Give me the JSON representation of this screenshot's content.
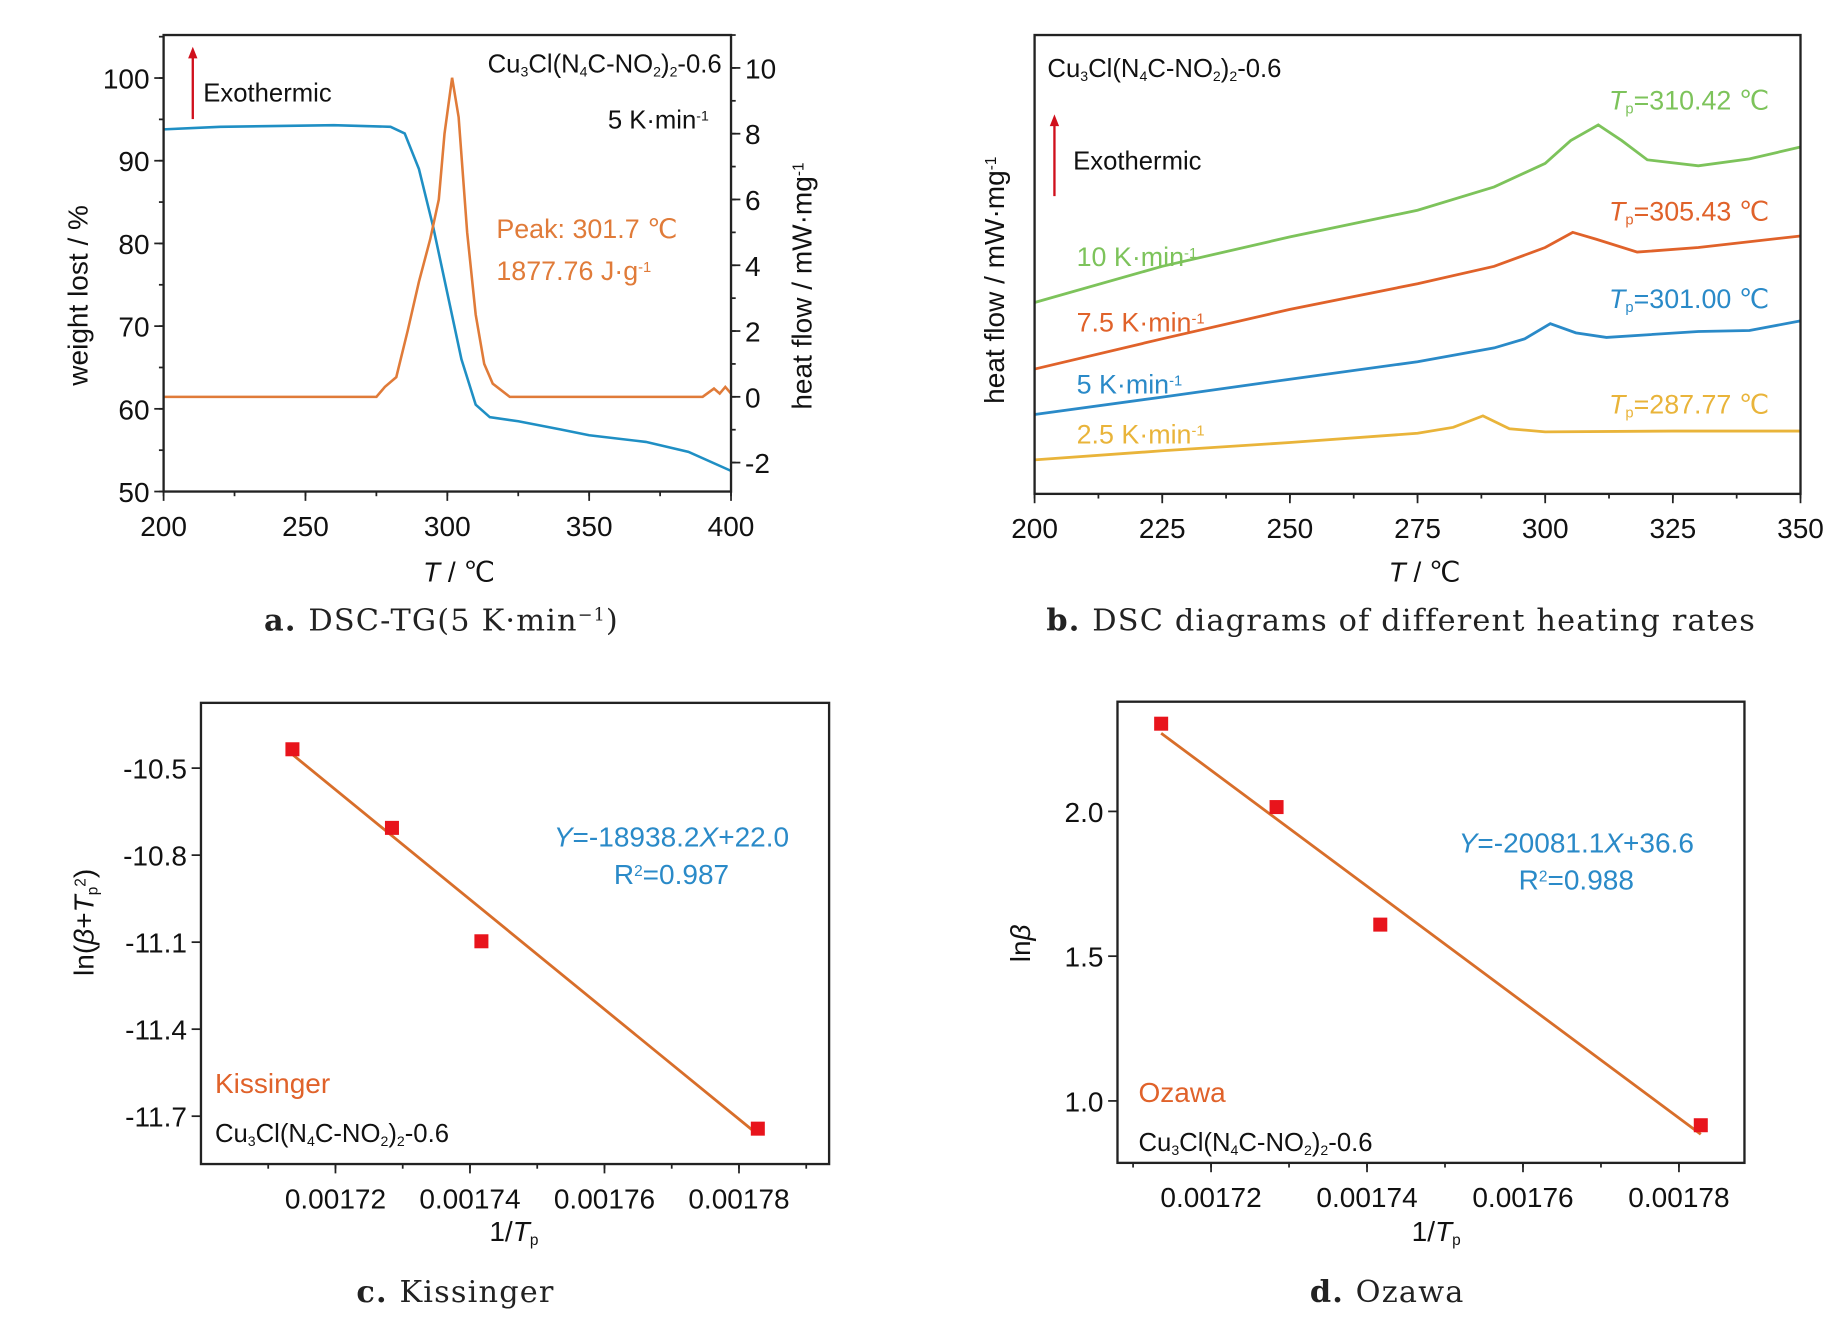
{
  "colors": {
    "tg": "#1f8fc4",
    "dsc": "#e07b39",
    "arrow": "#d0101c",
    "rate_10": "#7dc35b",
    "rate_7_5": "#e0622a",
    "rate_5": "#2a8ac8",
    "rate_2_5": "#e9b43a",
    "equation": "#2a8ac8",
    "points": "#e8141c",
    "fit": "#d86e2a",
    "method": "#e0622a"
  },
  "chart_data": [
    {
      "id": "a",
      "type": "line",
      "caption": {
        "letter": "a.",
        "text": [
          "DSC-TG(5 K·min",
          [
            "−1",
            "sup"
          ],
          ")"
        ]
      },
      "xlabel": [
        [
          "T",
          "it"
        ],
        " / ℃"
      ],
      "ylabel": "weight lost / %",
      "y2label": [
        "heat flow / mW·mg",
        [
          "-1",
          "sup"
        ]
      ],
      "xlim": [
        200,
        400
      ],
      "ylim": [
        50,
        105.2
      ],
      "y2lim": [
        -2.88,
        11
      ],
      "xticks": [
        200,
        250,
        300,
        350,
        400
      ],
      "yticks": [
        50,
        60,
        70,
        80,
        90,
        100
      ],
      "y2ticks": [
        -2,
        0,
        2,
        4,
        6,
        8,
        10
      ],
      "annotations": {
        "compound": [
          "Cu",
          [
            "3",
            "sub"
          ],
          "Cl(N",
          [
            "4",
            "sub"
          ],
          "C-NO",
          [
            "2",
            "sub"
          ],
          ")",
          [
            "2",
            "sub"
          ],
          "-0.6"
        ],
        "rate": [
          "5 K·min",
          [
            "-1",
            "sup"
          ]
        ],
        "exothermic": "Exothermic",
        "peak": "Peak: 301.7 ℃",
        "enthalpy": [
          "1877.76 J·g",
          [
            "-1",
            "sup"
          ]
        ]
      },
      "series": [
        {
          "axis": "left",
          "color_key": "tg",
          "x": [
            200,
            220,
            260,
            280,
            285,
            290,
            295,
            300,
            305,
            310,
            315,
            325,
            340,
            350,
            370,
            385,
            400
          ],
          "y": [
            93.8,
            94.1,
            94.3,
            94.1,
            93.3,
            89,
            82,
            74,
            66,
            60.5,
            59,
            58.5,
            57.5,
            56.8,
            56,
            54.8,
            52.5
          ]
        },
        {
          "axis": "right",
          "color_key": "dsc",
          "x": [
            200,
            240,
            275,
            278,
            282,
            286,
            290,
            294,
            297,
            299,
            301.7,
            304,
            307,
            310,
            313,
            316,
            322,
            360,
            390,
            394,
            396,
            398,
            400
          ],
          "y": [
            0,
            0,
            0,
            0.3,
            0.6,
            2,
            3.5,
            4.8,
            6,
            8,
            9.7,
            8.5,
            5,
            2.5,
            1,
            0.4,
            0,
            0,
            0,
            0.25,
            0.1,
            0.3,
            0.1
          ]
        }
      ]
    },
    {
      "id": "b",
      "type": "line",
      "caption": {
        "letter": "b.",
        "text": [
          "DSC diagrams of different heating rates"
        ]
      },
      "xlabel": [
        [
          "T",
          "it"
        ],
        " / ℃"
      ],
      "ylabel": [
        "heat flow / mW·mg",
        [
          "-1",
          "sup"
        ]
      ],
      "xlim": [
        200,
        350
      ],
      "ylim": [
        0,
        100
      ],
      "xticks": [
        200,
        225,
        250,
        275,
        300,
        325,
        350
      ],
      "annotations": {
        "compound": [
          "Cu",
          [
            "3",
            "sub"
          ],
          "Cl(N",
          [
            "4",
            "sub"
          ],
          "C-NO",
          [
            "2",
            "sub"
          ],
          ")",
          [
            "2",
            "sub"
          ],
          "-0.6"
        ],
        "exothermic": "Exothermic"
      },
      "series": [
        {
          "name": [
            "10 K·min",
            [
              "-1",
              "sup"
            ]
          ],
          "peak_label": [
            [
              "T",
              "it"
            ],
            [
              "p",
              "sub"
            ],
            "=310.42 ℃"
          ],
          "color_key": "rate_10",
          "x": [
            200,
            225,
            250,
            275,
            290,
            300,
            305,
            310.4,
            315,
            320,
            330,
            340,
            350
          ],
          "y": [
            41.7,
            49.6,
            56,
            61.8,
            66.9,
            72,
            77,
            80.4,
            77,
            72.8,
            71.5,
            73,
            75.6
          ]
        },
        {
          "name": [
            "7.5 K·min",
            [
              "-1",
              "sup"
            ]
          ],
          "peak_label": [
            [
              "T",
              "it"
            ],
            [
              "p",
              "sub"
            ],
            "=305.43 ℃"
          ],
          "color_key": "rate_7_5",
          "x": [
            200,
            225,
            250,
            275,
            290,
            300,
            305.4,
            310,
            318,
            330,
            350
          ],
          "y": [
            27.2,
            33.8,
            40.2,
            45.8,
            49.6,
            53.7,
            57,
            55.5,
            52.7,
            53.7,
            56.2
          ]
        },
        {
          "name": [
            "5 K·min",
            [
              "-1",
              "sup"
            ]
          ],
          "peak_label": [
            [
              "T",
              "it"
            ],
            [
              "p",
              "sub"
            ],
            "=301.00 ℃"
          ],
          "color_key": "rate_5",
          "x": [
            200,
            225,
            250,
            275,
            290,
            296,
            301,
            306,
            312,
            330,
            340,
            350
          ],
          "y": [
            17.3,
            21.1,
            25,
            28.8,
            31.8,
            33.8,
            37.1,
            35.1,
            34.1,
            35.4,
            35.6,
            37.7
          ]
        },
        {
          "name": [
            "2.5 K·min",
            [
              "-1",
              "sup"
            ]
          ],
          "peak_label": [
            [
              "T",
              "it"
            ],
            [
              "p",
              "sub"
            ],
            "=287.77 ℃"
          ],
          "color_key": "rate_2_5",
          "x": [
            200,
            225,
            250,
            275,
            282,
            287.8,
            293,
            300,
            325,
            350
          ],
          "y": [
            7.4,
            9.4,
            11.2,
            13.2,
            14.5,
            17,
            14.2,
            13.5,
            13.7,
            13.7
          ]
        }
      ]
    },
    {
      "id": "c",
      "type": "scatter",
      "caption": {
        "letter": "c.",
        "text": [
          "Kissinger"
        ]
      },
      "xlabel": [
        "1/",
        [
          "T",
          "it"
        ],
        [
          "p",
          "sub"
        ]
      ],
      "ylabel": [
        "ln(",
        [
          "β",
          "it"
        ],
        "+",
        [
          "T",
          "it"
        ],
        [
          "p",
          "sub"
        ],
        [
          "2",
          "sup"
        ],
        ")"
      ],
      "xlim": [
        0.0017,
        0.0017934
      ],
      "ylim": [
        -11.865,
        -10.275
      ],
      "xticks": [
        0.00172,
        0.00174,
        0.00176,
        0.00178
      ],
      "xtick_labels": [
        "0.00172",
        "0.00174",
        "0.00176",
        "0.00178"
      ],
      "yticks": [
        -10.5,
        -10.8,
        -11.1,
        -11.4,
        -11.7
      ],
      "ytick_labels": [
        "-10.5",
        "-10.8",
        "-11.1",
        "-11.4",
        "-11.7"
      ],
      "points": {
        "x": [
          0.0017136,
          0.0017284,
          0.0017417,
          0.0017828
        ],
        "y": [
          -10.435,
          -10.706,
          -11.097,
          -11.743
        ]
      },
      "fit": {
        "x": [
          0.0017136,
          0.0017828
        ],
        "y": [
          -10.453,
          -11.763
        ]
      },
      "annotations": {
        "equation": [
          [
            "Y",
            "it"
          ],
          "=-18938.2",
          [
            "X",
            "it"
          ],
          "+22.0"
        ],
        "r2": [
          "R",
          [
            "2",
            "sup"
          ],
          "=0.987"
        ],
        "method": "Kissinger",
        "compound": [
          "Cu",
          [
            "3",
            "sub"
          ],
          "Cl(N",
          [
            "4",
            "sub"
          ],
          "C-NO",
          [
            "2",
            "sub"
          ],
          ")",
          [
            "2",
            "sub"
          ],
          "-0.6"
        ]
      }
    },
    {
      "id": "d",
      "type": "scatter",
      "caption": {
        "letter": "d.",
        "text": [
          "Ozawa"
        ]
      },
      "xlabel": [
        "1/",
        [
          "T",
          "it"
        ],
        [
          "p",
          "sub"
        ]
      ],
      "ylabel": [
        "ln",
        [
          "β",
          "it"
        ]
      ],
      "xlim": [
        0.001708,
        0.0017884
      ],
      "ylim": [
        0.786,
        2.379
      ],
      "xticks": [
        0.00172,
        0.00174,
        0.00176,
        0.00178
      ],
      "xtick_labels": [
        "0.00172",
        "0.00174",
        "0.00176",
        "0.00178"
      ],
      "yticks": [
        1.0,
        1.5,
        2.0
      ],
      "ytick_labels": [
        "1.0",
        "1.5",
        "2.0"
      ],
      "points": {
        "x": [
          0.0017136,
          0.0017284,
          0.0017417,
          0.0017828
        ],
        "y": [
          2.303,
          2.015,
          1.609,
          0.916
        ]
      },
      "fit": {
        "x": [
          0.0017136,
          0.0017828
        ],
        "y": [
          2.27,
          0.885
        ]
      },
      "annotations": {
        "equation": [
          [
            "Y",
            "it"
          ],
          "=-20081.1",
          [
            "X",
            "it"
          ],
          "+36.6"
        ],
        "r2": [
          "R",
          [
            "2",
            "sup"
          ],
          "=0.988"
        ],
        "method": "Ozawa",
        "compound": [
          "Cu",
          [
            "3",
            "sub"
          ],
          "Cl(N",
          [
            "4",
            "sub"
          ],
          "C-NO",
          [
            "2",
            "sub"
          ],
          ")",
          [
            "2",
            "sub"
          ],
          "-0.6"
        ]
      }
    }
  ]
}
